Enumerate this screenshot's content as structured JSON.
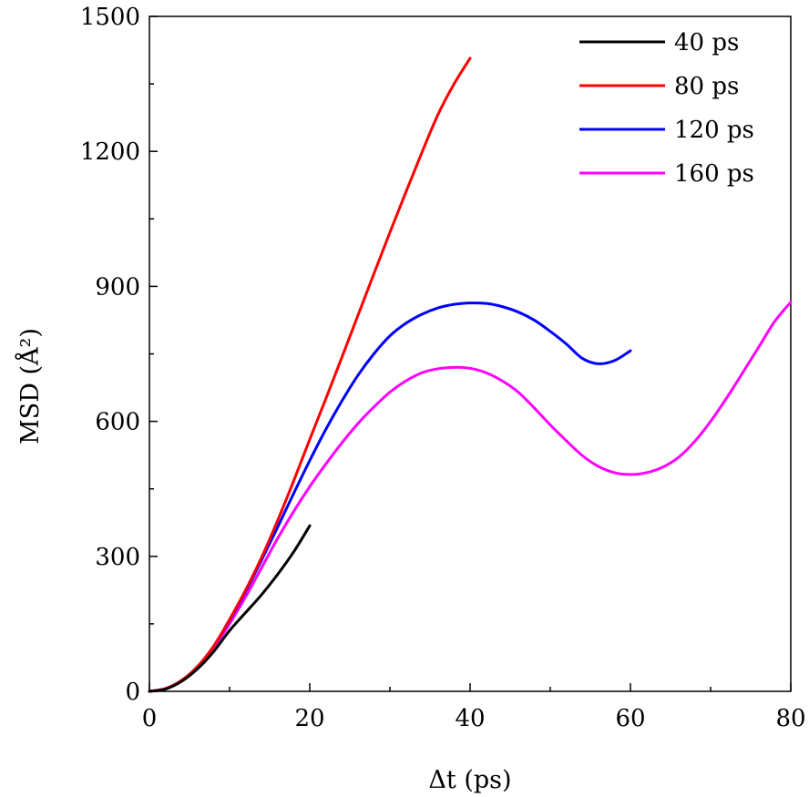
{
  "chart_data": {
    "type": "line",
    "xlabel": "Δt (ps)",
    "ylabel": "MSD (Å²)",
    "xlim": [
      0,
      80
    ],
    "ylim": [
      0,
      1500
    ],
    "xticks": [
      0,
      20,
      40,
      60,
      80
    ],
    "xtick_labels": [
      "0",
      "20",
      "40",
      "60",
      "80"
    ],
    "yticks": [
      0,
      300,
      600,
      900,
      1200,
      1500
    ],
    "ytick_labels": [
      "0",
      "300",
      "600",
      "900",
      "1200",
      "1500"
    ],
    "x_minor_step": 10,
    "y_minor_step": 150,
    "grid": false,
    "legend_position": "top-right",
    "series": [
      {
        "name": "40 ps",
        "color": "#000000",
        "points": [
          [
            0,
            0
          ],
          [
            2,
            5
          ],
          [
            4,
            22
          ],
          [
            6,
            50
          ],
          [
            8,
            88
          ],
          [
            10,
            135
          ],
          [
            12,
            175
          ],
          [
            14,
            215
          ],
          [
            16,
            260
          ],
          [
            18,
            310
          ],
          [
            20,
            368
          ]
        ]
      },
      {
        "name": "80 ps",
        "color": "#ff0000",
        "points": [
          [
            0,
            0
          ],
          [
            2,
            6
          ],
          [
            4,
            24
          ],
          [
            6,
            55
          ],
          [
            8,
            100
          ],
          [
            10,
            160
          ],
          [
            12,
            225
          ],
          [
            14,
            298
          ],
          [
            16,
            380
          ],
          [
            18,
            468
          ],
          [
            20,
            560
          ],
          [
            22,
            650
          ],
          [
            24,
            742
          ],
          [
            26,
            835
          ],
          [
            28,
            928
          ],
          [
            30,
            1020
          ],
          [
            32,
            1110
          ],
          [
            34,
            1198
          ],
          [
            36,
            1282
          ],
          [
            38,
            1350
          ],
          [
            40,
            1407
          ]
        ]
      },
      {
        "name": "120 ps",
        "color": "#0000ff",
        "points": [
          [
            0,
            0
          ],
          [
            2,
            6
          ],
          [
            4,
            24
          ],
          [
            6,
            55
          ],
          [
            8,
            100
          ],
          [
            10,
            158
          ],
          [
            12,
            222
          ],
          [
            14,
            292
          ],
          [
            16,
            365
          ],
          [
            18,
            440
          ],
          [
            20,
            513
          ],
          [
            22,
            582
          ],
          [
            24,
            645
          ],
          [
            26,
            702
          ],
          [
            28,
            750
          ],
          [
            30,
            790
          ],
          [
            32,
            818
          ],
          [
            34,
            838
          ],
          [
            36,
            852
          ],
          [
            38,
            860
          ],
          [
            40,
            863
          ],
          [
            42,
            862
          ],
          [
            44,
            855
          ],
          [
            46,
            843
          ],
          [
            48,
            825
          ],
          [
            50,
            800
          ],
          [
            52,
            772
          ],
          [
            54,
            740
          ],
          [
            56,
            728
          ],
          [
            58,
            735
          ],
          [
            60,
            757
          ]
        ]
      },
      {
        "name": "160 ps",
        "color": "#ff00ff",
        "points": [
          [
            0,
            0
          ],
          [
            2,
            6
          ],
          [
            4,
            23
          ],
          [
            6,
            52
          ],
          [
            8,
            95
          ],
          [
            10,
            150
          ],
          [
            12,
            210
          ],
          [
            14,
            275
          ],
          [
            16,
            340
          ],
          [
            18,
            400
          ],
          [
            20,
            455
          ],
          [
            22,
            505
          ],
          [
            24,
            552
          ],
          [
            26,
            595
          ],
          [
            28,
            632
          ],
          [
            30,
            665
          ],
          [
            32,
            690
          ],
          [
            34,
            708
          ],
          [
            36,
            717
          ],
          [
            38,
            720
          ],
          [
            40,
            718
          ],
          [
            42,
            708
          ],
          [
            44,
            690
          ],
          [
            46,
            665
          ],
          [
            48,
            630
          ],
          [
            50,
            592
          ],
          [
            52,
            557
          ],
          [
            54,
            524
          ],
          [
            56,
            500
          ],
          [
            58,
            486
          ],
          [
            60,
            482
          ],
          [
            62,
            486
          ],
          [
            64,
            498
          ],
          [
            66,
            520
          ],
          [
            68,
            555
          ],
          [
            70,
            600
          ],
          [
            72,
            652
          ],
          [
            74,
            708
          ],
          [
            76,
            765
          ],
          [
            78,
            822
          ],
          [
            80,
            865
          ]
        ]
      }
    ]
  }
}
